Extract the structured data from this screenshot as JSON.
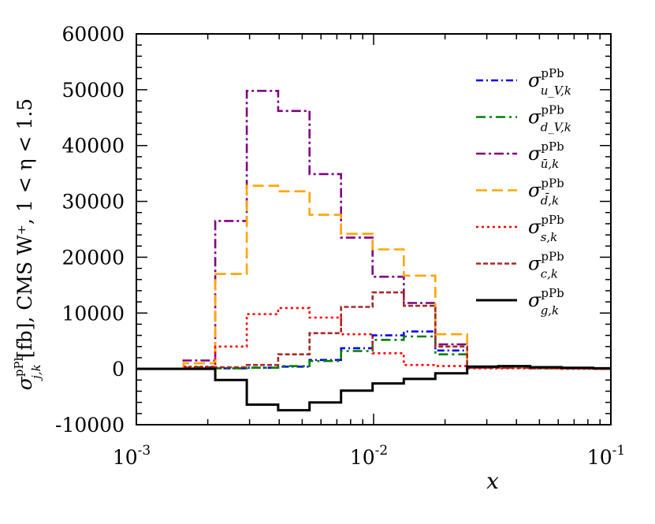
{
  "chart_data": {
    "type": "line",
    "step": true,
    "xlabel": "x",
    "ylabel": {
      "sym": "σ",
      "sup": "pPb",
      "sub": "j,k",
      "rest": " [fb], CMS W⁺, 1 < η < 1.5"
    },
    "xscale": "log",
    "xlim": [
      0.001,
      0.1
    ],
    "ylim": [
      -10000,
      60000
    ],
    "x_ticks": [
      {
        "base": "10",
        "exp": "-3"
      },
      {
        "base": "10",
        "exp": "-2"
      },
      {
        "base": "10",
        "exp": "-1"
      }
    ],
    "y_ticks": [
      "60000",
      "50000",
      "40000",
      "30000",
      "20000",
      "10000",
      "0",
      "-10000"
    ],
    "grid": false,
    "legend_position": "top-right",
    "x_edges": [
      0.001,
      0.00158,
      0.00215,
      0.00292,
      0.00396,
      0.00537,
      0.00729,
      0.0099,
      0.0134,
      0.0182,
      0.0248,
      0.0336,
      0.0457,
      0.062,
      0.0841,
      0.1
    ],
    "series": [
      {
        "name": "u_V",
        "sup": "pPb",
        "sub": "u_V,k",
        "color": "#0000ee",
        "dash": "9,4,2,4",
        "values": [
          0,
          300,
          100,
          200,
          400,
          1600,
          3700,
          6000,
          6700,
          3300,
          300,
          300,
          200,
          100,
          0
        ]
      },
      {
        "name": "d_V",
        "sup": "pPb",
        "sub": "d_V,k",
        "color": "#008000",
        "dash": "12,5,3,5",
        "values": [
          0,
          300,
          100,
          200,
          500,
          1400,
          3200,
          5200,
          5800,
          2600,
          200,
          200,
          100,
          100,
          0
        ]
      },
      {
        "name": "ubar",
        "sup": "pPb",
        "sub": "ū,k",
        "color": "#800080",
        "dash": "12,4,3,4",
        "values": [
          0,
          1500,
          26500,
          49800,
          46200,
          34900,
          23500,
          16500,
          11800,
          4400,
          300,
          300,
          200,
          100,
          0
        ]
      },
      {
        "name": "dbar",
        "sup": "pPb",
        "sub": "d̄,k",
        "color": "#ffa500",
        "dash": "14,6",
        "values": [
          0,
          1000,
          17000,
          32800,
          31800,
          27600,
          24200,
          21400,
          16700,
          6200,
          300,
          300,
          200,
          100,
          0
        ]
      },
      {
        "name": "s",
        "sup": "pPb",
        "sub": "s,k",
        "color": "#ff0000",
        "dash": "3,4",
        "values": [
          0,
          400,
          4000,
          9800,
          10900,
          9200,
          6200,
          2800,
          700,
          500,
          100,
          100,
          100,
          0,
          0
        ]
      },
      {
        "name": "c",
        "sup": "pPb",
        "sub": "c,k",
        "color": "#a52a2a",
        "dash": "6,3",
        "values": [
          0,
          100,
          300,
          700,
          2600,
          6400,
          11100,
          13700,
          11300,
          4000,
          200,
          200,
          100,
          100,
          0
        ]
      },
      {
        "name": "g",
        "sup": "pPb",
        "sub": "g,k",
        "color": "#000000",
        "dash": "",
        "values": [
          0,
          0,
          -2000,
          -6400,
          -7400,
          -6000,
          -3900,
          -2600,
          -1800,
          -800,
          400,
          500,
          300,
          200,
          100
        ]
      }
    ]
  }
}
